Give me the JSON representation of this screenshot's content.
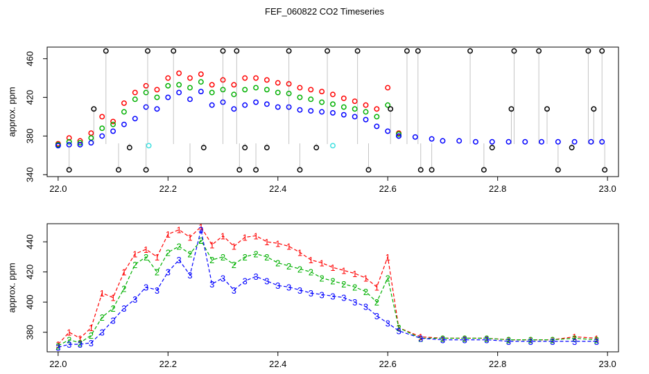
{
  "figure": {
    "title": "FEF_060822  CO2 Timeseries"
  },
  "colors": {
    "series1": "#ff0000",
    "series2": "#00b000",
    "series3": "#0000ff",
    "flag": "#000000",
    "cyan": "#40e0e0",
    "drop": "#888888"
  },
  "chart_data": [
    {
      "type": "scatter",
      "ylabel": "approx. ppm",
      "xlim": [
        21.98,
        23.02
      ],
      "ylim": [
        338,
        472
      ],
      "xticks": [
        "22.0",
        "22.2",
        "22.4",
        "22.6",
        "22.8",
        "23.0"
      ],
      "xtick_values": [
        22.0,
        22.2,
        22.4,
        22.6,
        22.8,
        23.0
      ],
      "yticks": [
        "340",
        "380",
        "420",
        "460"
      ],
      "ytick_values": [
        340,
        380,
        420,
        460
      ],
      "series": [
        {
          "name": "1",
          "color": "#ff0000",
          "x": [
            22.0,
            22.02,
            22.04,
            22.06,
            22.08,
            22.1,
            22.12,
            22.14,
            22.16,
            22.18,
            22.2,
            22.22,
            22.24,
            22.26,
            22.28,
            22.3,
            22.32,
            22.34,
            22.36,
            22.38,
            22.4,
            22.42,
            22.44,
            22.46,
            22.48,
            22.5,
            22.52,
            22.54,
            22.56,
            22.58,
            22.6,
            22.62
          ],
          "y": [
            372,
            378,
            375,
            383,
            400,
            395,
            414,
            425,
            432,
            428,
            440,
            445,
            440,
            444,
            433,
            438,
            433,
            440,
            440,
            438,
            435,
            434,
            430,
            428,
            426,
            423,
            419,
            416,
            412,
            408,
            430,
            383
          ]
        },
        {
          "name": "2",
          "color": "#00b000",
          "x": [
            22.0,
            22.02,
            22.04,
            22.06,
            22.08,
            22.1,
            22.12,
            22.14,
            22.16,
            22.18,
            22.2,
            22.22,
            22.24,
            22.26,
            22.28,
            22.3,
            22.32,
            22.34,
            22.36,
            22.38,
            22.4,
            22.42,
            22.44,
            22.46,
            22.48,
            22.5,
            22.52,
            22.54,
            22.56,
            22.58,
            22.6,
            22.62
          ],
          "y": [
            371,
            374,
            373,
            378,
            388,
            392,
            405,
            418,
            425,
            420,
            432,
            433,
            430,
            436,
            425,
            428,
            423,
            428,
            430,
            428,
            425,
            424,
            420,
            418,
            415,
            413,
            410,
            408,
            405,
            400,
            412,
            382
          ]
        },
        {
          "name": "3",
          "color": "#0000ff",
          "x": [
            22.0,
            22.02,
            22.04,
            22.06,
            22.08,
            22.1,
            22.12,
            22.14,
            22.16,
            22.18,
            22.2,
            22.22,
            22.24,
            22.26,
            22.28,
            22.3,
            22.32,
            22.34,
            22.36,
            22.38,
            22.4,
            22.42,
            22.44,
            22.46,
            22.48,
            22.5,
            22.52,
            22.54,
            22.56,
            22.58,
            22.6,
            22.62
          ],
          "y": [
            370,
            371,
            371,
            373,
            380,
            385,
            392,
            398,
            410,
            408,
            420,
            425,
            418,
            426,
            412,
            415,
            408,
            412,
            415,
            413,
            410,
            410,
            407,
            406,
            405,
            404,
            402,
            400,
            397,
            390,
            385,
            380
          ]
        },
        {
          "name": "flag",
          "color": "#000000",
          "x": [
            22.02,
            22.065,
            22.087,
            22.11,
            22.13,
            22.16,
            22.163,
            22.21,
            22.24,
            22.265,
            22.3,
            22.325,
            22.33,
            22.34,
            22.36,
            22.38,
            22.42,
            22.44,
            22.47,
            22.49,
            22.545,
            22.565,
            22.605,
            22.635,
            22.655,
            22.66,
            22.68,
            22.75,
            22.775,
            22.79,
            22.825,
            22.83,
            22.875,
            22.89,
            22.91,
            22.935,
            22.965,
            22.975,
            22.99,
            22.995
          ],
          "y": [
            345,
            408,
            468,
            345,
            368,
            345,
            468,
            468,
            345,
            368,
            468,
            468,
            345,
            368,
            345,
            368,
            468,
            345,
            368,
            468,
            468,
            345,
            408,
            468,
            468,
            345,
            345,
            468,
            345,
            368,
            408,
            468,
            468,
            408,
            345,
            368,
            468,
            408,
            468,
            345
          ]
        },
        {
          "name": "cyan",
          "color": "#40e0e0",
          "x": [
            22.165,
            22.5
          ],
          "y": [
            370,
            370
          ]
        },
        {
          "name": "flat",
          "color": "#0000ff",
          "x": [
            22.62,
            22.65,
            22.68,
            22.7,
            22.73,
            22.76,
            22.79,
            22.82,
            22.85,
            22.88,
            22.91,
            22.94,
            22.97,
            22.99
          ],
          "y": [
            380,
            379,
            377,
            375,
            375,
            374,
            374,
            374,
            374,
            374,
            374,
            374,
            374,
            374
          ]
        }
      ]
    },
    {
      "type": "line",
      "ylabel": "approx. ppm",
      "xlim": [
        21.98,
        23.02
      ],
      "ylim": [
        367,
        452
      ],
      "xticks": [
        "22.0",
        "22.2",
        "22.4",
        "22.6",
        "22.8",
        "23.0"
      ],
      "xtick_values": [
        22.0,
        22.2,
        22.4,
        22.6,
        22.8,
        23.0
      ],
      "yticks": [
        "380",
        "400",
        "420",
        "440"
      ],
      "ytick_values": [
        380,
        400,
        420,
        440
      ],
      "series": [
        {
          "name": "1",
          "label": "1",
          "color": "#ff0000",
          "x": [
            22.0,
            22.02,
            22.04,
            22.06,
            22.08,
            22.1,
            22.12,
            22.14,
            22.16,
            22.18,
            22.2,
            22.22,
            22.24,
            22.26,
            22.28,
            22.3,
            22.32,
            22.34,
            22.36,
            22.38,
            22.4,
            22.42,
            22.44,
            22.46,
            22.48,
            22.5,
            22.52,
            22.54,
            22.56,
            22.58,
            22.6,
            22.62,
            22.66,
            22.7,
            22.74,
            22.78,
            22.82,
            22.86,
            22.9,
            22.94,
            22.98
          ],
          "y": [
            372,
            380,
            376,
            383,
            406,
            403,
            420,
            432,
            435,
            430,
            445,
            448,
            443,
            450,
            438,
            444,
            437,
            443,
            444,
            440,
            439,
            437,
            433,
            428,
            426,
            423,
            421,
            419,
            416,
            410,
            430,
            383,
            377,
            376,
            376,
            376,
            375,
            375,
            375,
            377,
            376
          ]
        },
        {
          "name": "2",
          "label": "2",
          "color": "#00b000",
          "x": [
            22.0,
            22.02,
            22.04,
            22.06,
            22.08,
            22.1,
            22.12,
            22.14,
            22.16,
            22.18,
            22.2,
            22.22,
            22.24,
            22.26,
            22.28,
            22.3,
            22.32,
            22.34,
            22.36,
            22.38,
            22.4,
            22.42,
            22.44,
            22.46,
            22.48,
            22.5,
            22.52,
            22.54,
            22.56,
            22.58,
            22.6,
            22.62,
            22.66,
            22.7,
            22.74,
            22.78,
            22.82,
            22.86,
            22.9,
            22.94,
            22.98
          ],
          "y": [
            371,
            375,
            373,
            378,
            390,
            396,
            409,
            425,
            430,
            420,
            433,
            437,
            432,
            441,
            428,
            430,
            425,
            430,
            432,
            430,
            426,
            424,
            422,
            420,
            416,
            414,
            412,
            410,
            407,
            400,
            416,
            383,
            376,
            376,
            376,
            376,
            375,
            375,
            375,
            376,
            375
          ]
        },
        {
          "name": "3",
          "label": "3",
          "color": "#0000ff",
          "x": [
            22.0,
            22.02,
            22.04,
            22.06,
            22.08,
            22.1,
            22.12,
            22.14,
            22.16,
            22.18,
            22.2,
            22.22,
            22.24,
            22.26,
            22.28,
            22.3,
            22.32,
            22.34,
            22.36,
            22.38,
            22.4,
            22.42,
            22.44,
            22.46,
            22.48,
            22.5,
            22.52,
            22.54,
            22.56,
            22.58,
            22.6,
            22.62,
            22.66,
            22.7,
            22.74,
            22.78,
            22.82,
            22.86,
            22.9,
            22.94,
            22.98
          ],
          "y": [
            370,
            372,
            372,
            373,
            380,
            388,
            396,
            402,
            410,
            408,
            420,
            428,
            418,
            448,
            412,
            416,
            408,
            414,
            417,
            414,
            411,
            410,
            408,
            406,
            405,
            404,
            403,
            400,
            397,
            391,
            386,
            381,
            376,
            375,
            375,
            375,
            374,
            374,
            374,
            374,
            374
          ]
        }
      ]
    }
  ]
}
